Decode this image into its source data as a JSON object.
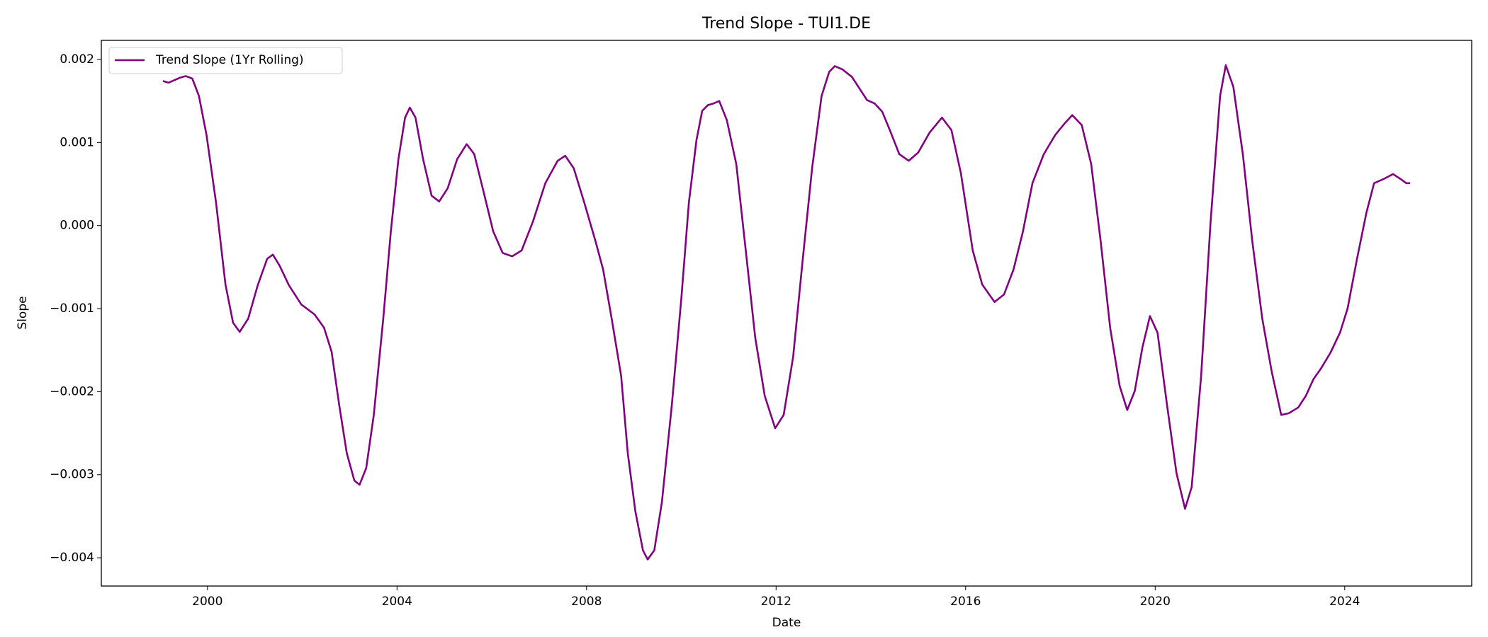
{
  "chart_data": {
    "type": "line",
    "title": "Trend Slope - TUI1.DE",
    "xlabel": "Date",
    "ylabel": "Slope",
    "x": [
      1999.06,
      1999.18,
      1999.42,
      1999.54,
      1999.68,
      1999.82,
      1999.98,
      2000.18,
      2000.38,
      2000.54,
      2000.68,
      2000.86,
      2001.06,
      2001.26,
      2001.38,
      2001.52,
      2001.72,
      2001.98,
      2002.26,
      2002.46,
      2002.62,
      2002.78,
      2002.94,
      2003.1,
      2003.21,
      2003.35,
      2003.51,
      2003.71,
      2003.87,
      2004.03,
      2004.17,
      2004.27,
      2004.39,
      2004.55,
      2004.73,
      2004.89,
      2005.07,
      2005.27,
      2005.47,
      2005.63,
      2005.83,
      2006.03,
      2006.23,
      2006.43,
      2006.63,
      2006.87,
      2007.13,
      2007.39,
      2007.55,
      2007.73,
      2007.95,
      2008.19,
      2008.35,
      2008.53,
      2008.73,
      2008.87,
      2009.03,
      2009.19,
      2009.29,
      2009.43,
      2009.59,
      2009.8,
      2010.0,
      2010.16,
      2010.32,
      2010.44,
      2010.56,
      2010.68,
      2010.8,
      2010.96,
      2011.16,
      2011.36,
      2011.56,
      2011.76,
      2011.98,
      2012.16,
      2012.36,
      2012.56,
      2012.76,
      2012.96,
      2013.12,
      2013.24,
      2013.4,
      2013.6,
      2013.76,
      2013.92,
      2014.08,
      2014.24,
      2014.4,
      2014.6,
      2014.8,
      2015.0,
      2015.24,
      2015.5,
      2015.7,
      2015.9,
      2016.15,
      2016.35,
      2016.61,
      2016.81,
      2017.01,
      2017.21,
      2017.41,
      2017.65,
      2017.89,
      2018.09,
      2018.25,
      2018.45,
      2018.65,
      2018.85,
      2019.05,
      2019.25,
      2019.41,
      2019.57,
      2019.73,
      2019.89,
      2020.05,
      2020.25,
      2020.45,
      2020.63,
      2020.77,
      2020.97,
      2021.17,
      2021.37,
      2021.49,
      2021.65,
      2021.85,
      2022.05,
      2022.26,
      2022.46,
      2022.66,
      2022.82,
      2023.02,
      2023.18,
      2023.34,
      2023.5,
      2023.7,
      2023.9,
      2024.06,
      2024.26,
      2024.46,
      2024.62,
      2024.82,
      2025.02,
      2025.18,
      2025.3,
      2025.38
    ],
    "series": [
      {
        "name": "Trend Slope (1Yr Rolling)",
        "color": "#800080",
        "values": [
          0.00174,
          0.00172,
          0.00178,
          0.0018,
          0.00177,
          0.00156,
          0.00109,
          0.00028,
          -0.00071,
          -0.00117,
          -0.00128,
          -0.00112,
          -0.00072,
          -0.0004,
          -0.00035,
          -0.00048,
          -0.00072,
          -0.00095,
          -0.00107,
          -0.00123,
          -0.00152,
          -0.00216,
          -0.00274,
          -0.00307,
          -0.00312,
          -0.00292,
          -0.00228,
          -0.00112,
          -7e-05,
          0.0008,
          0.0013,
          0.00142,
          0.0013,
          0.0008,
          0.00036,
          0.00029,
          0.00045,
          0.0008,
          0.00098,
          0.00086,
          0.0004,
          -7e-05,
          -0.00033,
          -0.00037,
          -0.0003,
          5e-05,
          0.00051,
          0.00078,
          0.00084,
          0.00069,
          0.00028,
          -0.00019,
          -0.00053,
          -0.00112,
          -0.00181,
          -0.00274,
          -0.00344,
          -0.00391,
          -0.00402,
          -0.00391,
          -0.00333,
          -0.00216,
          -0.00088,
          0.00028,
          0.00103,
          0.00138,
          0.00145,
          0.00147,
          0.0015,
          0.00127,
          0.00074,
          -0.0003,
          -0.00135,
          -0.00205,
          -0.00244,
          -0.00228,
          -0.00158,
          -0.00042,
          0.00069,
          0.00156,
          0.00185,
          0.00192,
          0.00188,
          0.00179,
          0.00165,
          0.00151,
          0.00147,
          0.00137,
          0.00115,
          0.00086,
          0.00078,
          0.00088,
          0.00112,
          0.0013,
          0.00115,
          0.00063,
          -0.0003,
          -0.00071,
          -0.00092,
          -0.00083,
          -0.00053,
          -7e-05,
          0.00051,
          0.00086,
          0.00109,
          0.00123,
          0.00133,
          0.00121,
          0.00074,
          -0.00019,
          -0.00123,
          -0.00193,
          -0.00222,
          -0.00199,
          -0.00147,
          -0.00109,
          -0.00129,
          -0.00216,
          -0.00298,
          -0.00341,
          -0.00315,
          -0.00181,
          5e-05,
          0.00156,
          0.00193,
          0.00167,
          0.00086,
          -0.00019,
          -0.00112,
          -0.00176,
          -0.00228,
          -0.00226,
          -0.00219,
          -0.00205,
          -0.00185,
          -0.00172,
          -0.00153,
          -0.00129,
          -0.001,
          -0.0004,
          0.00016,
          0.00051,
          0.00056,
          0.00062,
          0.00056,
          0.00051,
          0.00051
        ]
      }
    ],
    "xlim": [
      1997.76,
      2026.68
    ],
    "xticks": [
      2000,
      2004,
      2008,
      2012,
      2016,
      2020,
      2024
    ],
    "ylim": [
      -0.00434,
      0.00223
    ],
    "yticks": [
      {
        "value": -0.004,
        "label": "−0.004"
      },
      {
        "value": -0.003,
        "label": "−0.003"
      },
      {
        "value": -0.002,
        "label": "−0.002"
      },
      {
        "value": -0.001,
        "label": "−0.001"
      },
      {
        "value": 0,
        "label": "0.000"
      },
      0.001,
      0.002
    ],
    "grid": false,
    "legend": "upper left"
  }
}
